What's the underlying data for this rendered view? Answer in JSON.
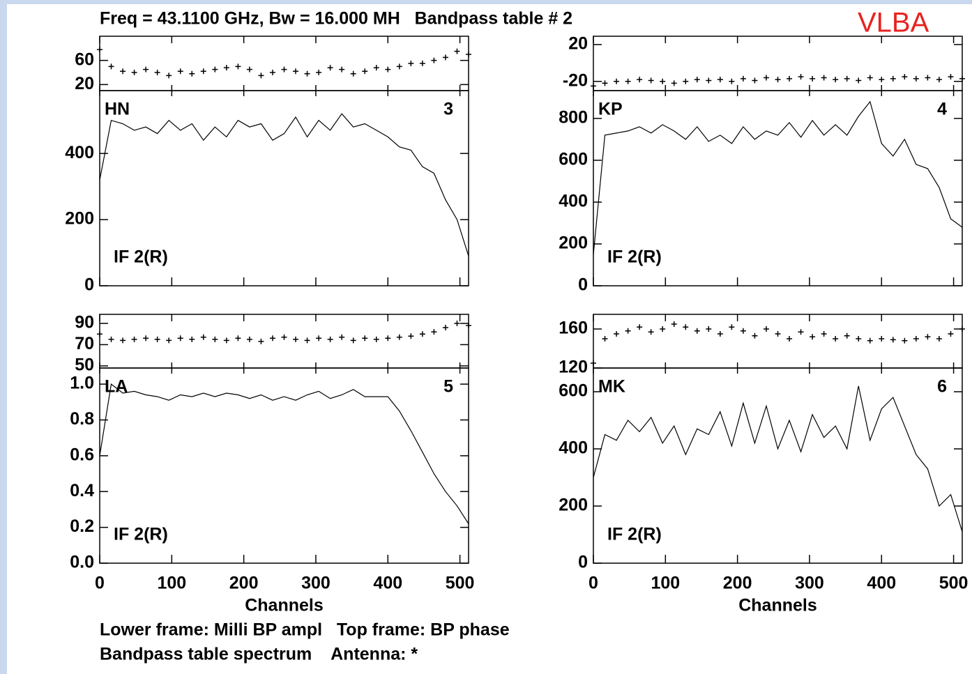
{
  "title": "Freq = 43.1100 GHz, Bw = 16.000 MH   Bandpass table # 2",
  "logo": "VLBA",
  "footer": [
    "Lower frame: Milli BP ampl   Top frame: BP phase",
    "Bandpass table spectrum    Antenna: *"
  ],
  "chart_data": [
    {
      "type": "line",
      "antenna": "HN",
      "number": "3",
      "if_label": "IF 2(R)",
      "xlabel": null,
      "xtick_labels": false,
      "xlim": [
        0,
        512
      ],
      "xticks": [
        0,
        100,
        200,
        300,
        400,
        500
      ],
      "x": [
        0,
        16,
        32,
        48,
        64,
        80,
        96,
        112,
        128,
        144,
        160,
        176,
        192,
        208,
        224,
        240,
        256,
        272,
        288,
        304,
        320,
        336,
        352,
        368,
        384,
        400,
        416,
        432,
        448,
        464,
        480,
        496,
        512
      ],
      "phase": {
        "ylim": [
          10,
          100
        ],
        "yticks": [
          20,
          60
        ],
        "values": [
          78,
          50,
          42,
          40,
          45,
          40,
          35,
          42,
          38,
          42,
          45,
          48,
          50,
          45,
          35,
          40,
          45,
          42,
          38,
          40,
          48,
          45,
          38,
          42,
          48,
          45,
          50,
          55,
          55,
          60,
          65,
          75,
          70
        ]
      },
      "amplitude": {
        "ylim": [
          0,
          590
        ],
        "yticks": [
          0,
          200,
          400
        ],
        "values": [
          320,
          500,
          490,
          470,
          480,
          460,
          500,
          470,
          490,
          440,
          480,
          450,
          500,
          480,
          490,
          440,
          460,
          510,
          450,
          500,
          470,
          520,
          480,
          490,
          470,
          450,
          420,
          410,
          360,
          340,
          260,
          200,
          90
        ]
      }
    },
    {
      "type": "line",
      "antenna": "KP",
      "number": "4",
      "if_label": "IF 2(R)",
      "xlabel": null,
      "xtick_labels": false,
      "xlim": [
        0,
        512
      ],
      "xticks": [
        0,
        100,
        200,
        300,
        400,
        500
      ],
      "x": [
        0,
        16,
        32,
        48,
        64,
        80,
        96,
        112,
        128,
        144,
        160,
        176,
        192,
        208,
        224,
        240,
        256,
        272,
        288,
        304,
        320,
        336,
        352,
        368,
        384,
        400,
        416,
        432,
        448,
        464,
        480,
        496,
        512
      ],
      "phase": {
        "ylim": [
          -30,
          29
        ],
        "yticks": [
          -20,
          20
        ],
        "values": [
          -25,
          -22,
          -20,
          -20,
          -18,
          -19,
          -20,
          -22,
          -20,
          -18,
          -19,
          -18,
          -20,
          -17,
          -19,
          -16,
          -18,
          -17,
          -15,
          -17,
          -16,
          -18,
          -17,
          -19,
          -16,
          -18,
          -17,
          -15,
          -17,
          -16,
          -18,
          -15,
          -17
        ]
      },
      "amplitude": {
        "ylim": [
          0,
          933
        ],
        "yticks": [
          0,
          200,
          400,
          600,
          800
        ],
        "values": [
          150,
          720,
          730,
          740,
          760,
          730,
          770,
          740,
          700,
          760,
          690,
          720,
          680,
          760,
          700,
          740,
          720,
          780,
          710,
          790,
          720,
          770,
          720,
          810,
          880,
          680,
          620,
          700,
          580,
          560,
          470,
          320,
          280
        ]
      }
    },
    {
      "type": "line",
      "antenna": "LA",
      "number": "5",
      "if_label": "IF 2(R)",
      "xlabel": "Channels",
      "xtick_labels": true,
      "xlim": [
        0,
        512
      ],
      "xticks": [
        0,
        100,
        200,
        300,
        400,
        500
      ],
      "x": [
        0,
        16,
        32,
        48,
        64,
        80,
        96,
        112,
        128,
        144,
        160,
        176,
        192,
        208,
        224,
        240,
        256,
        272,
        288,
        304,
        320,
        336,
        352,
        368,
        384,
        400,
        416,
        432,
        448,
        464,
        480,
        496,
        512
      ],
      "phase": {
        "ylim": [
          48,
          98.5
        ],
        "yticks": [
          50,
          70,
          90
        ],
        "values": [
          80,
          75,
          74,
          75,
          76,
          75,
          74,
          76,
          75,
          77,
          75,
          74,
          76,
          75,
          73,
          76,
          77,
          75,
          74,
          76,
          75,
          77,
          74,
          76,
          75,
          76,
          77,
          78,
          80,
          82,
          86,
          90,
          88
        ]
      },
      "amplitude": {
        "ylim": [
          0,
          1.09
        ],
        "yticks": [
          {
            "value": 0,
            "label": "0.0"
          },
          0.2,
          0.4,
          0.6,
          0.8,
          {
            "value": 1,
            "label": "1.0"
          }
        ],
        "values": [
          0.6,
          1.0,
          0.95,
          0.96,
          0.94,
          0.93,
          0.91,
          0.94,
          0.93,
          0.95,
          0.93,
          0.95,
          0.94,
          0.92,
          0.94,
          0.91,
          0.93,
          0.91,
          0.94,
          0.96,
          0.92,
          0.94,
          0.97,
          0.93,
          0.93,
          0.93,
          0.85,
          0.74,
          0.62,
          0.5,
          0.4,
          0.32,
          0.22
        ]
      }
    },
    {
      "type": "line",
      "antenna": "MK",
      "number": "6",
      "if_label": "IF 2(R)",
      "xlabel": "Channels",
      "xtick_labels": true,
      "xlim": [
        0,
        512
      ],
      "xticks": [
        0,
        100,
        200,
        300,
        400,
        500
      ],
      "x": [
        0,
        16,
        32,
        48,
        64,
        80,
        96,
        112,
        128,
        144,
        160,
        176,
        192,
        208,
        224,
        240,
        256,
        272,
        288,
        304,
        320,
        336,
        352,
        368,
        384,
        400,
        416,
        432,
        448,
        464,
        480,
        496,
        512
      ],
      "phase": {
        "ylim": [
          120,
          175
        ],
        "yticks": [
          120,
          160
        ],
        "values": [
          125,
          150,
          155,
          158,
          162,
          157,
          160,
          165,
          162,
          158,
          160,
          155,
          162,
          158,
          153,
          160,
          155,
          150,
          157,
          152,
          155,
          150,
          153,
          150,
          148,
          150,
          149,
          148,
          150,
          152,
          150,
          155,
          160
        ]
      },
      "amplitude": {
        "ylim": [
          0,
          683
        ],
        "yticks": [
          0,
          200,
          400,
          600
        ],
        "values": [
          300,
          450,
          430,
          500,
          460,
          510,
          420,
          480,
          380,
          470,
          450,
          530,
          410,
          560,
          420,
          550,
          400,
          500,
          390,
          520,
          440,
          480,
          400,
          620,
          430,
          540,
          580,
          480,
          380,
          330,
          200,
          240,
          110
        ]
      }
    }
  ]
}
